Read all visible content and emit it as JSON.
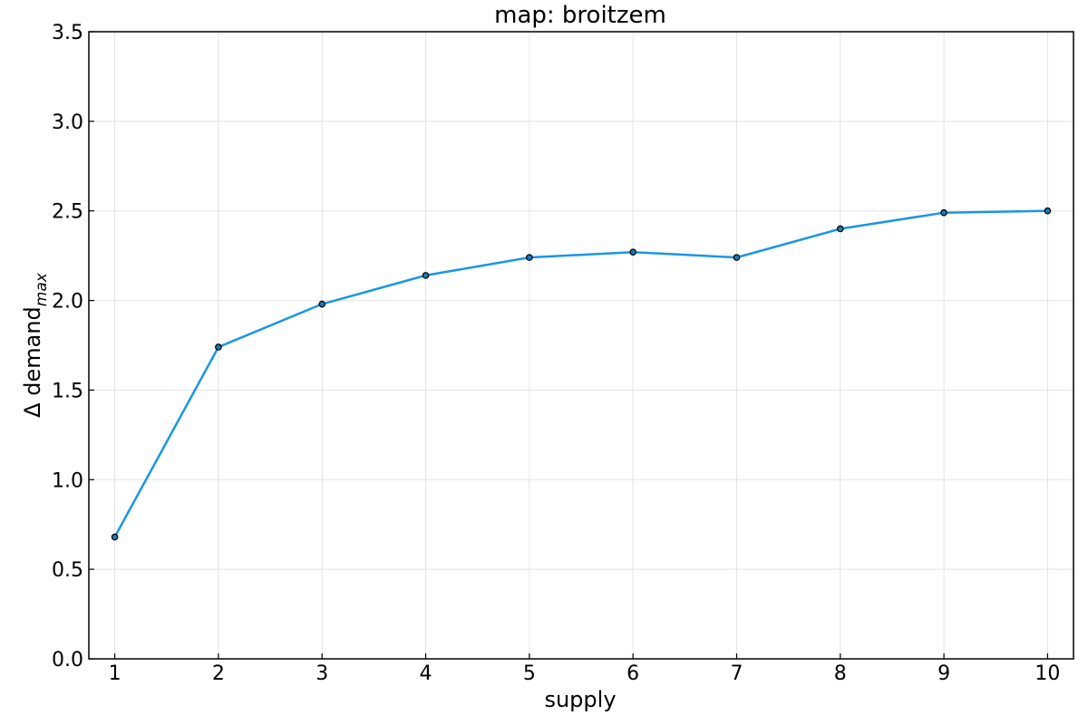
{
  "chart_data": {
    "type": "line",
    "title": "map: broitzem",
    "xlabel": "supply",
    "ylabel": "Δ demand",
    "ylabel_subscript": "max",
    "xlim": [
      0.75,
      10.25
    ],
    "ylim": [
      0,
      3.5
    ],
    "xticks": [
      1,
      2,
      3,
      4,
      5,
      6,
      7,
      8,
      9,
      10
    ],
    "yticks": [
      0.0,
      0.5,
      1.0,
      1.5,
      2.0,
      2.5,
      3.0,
      3.5
    ],
    "ytick_labels": [
      "0.0",
      "0.5",
      "1.0",
      "1.5",
      "2.0",
      "2.5",
      "3.0",
      "3.5"
    ],
    "grid": true,
    "legend": "none",
    "series": [
      {
        "color": "#1a96e6",
        "marker_fill": "#1f77b4",
        "x": [
          1,
          2,
          3,
          4,
          5,
          6,
          7,
          8,
          9,
          10
        ],
        "values": [
          0.68,
          1.74,
          1.98,
          2.14,
          2.24,
          2.27,
          2.24,
          2.4,
          2.49,
          2.5
        ]
      }
    ]
  }
}
